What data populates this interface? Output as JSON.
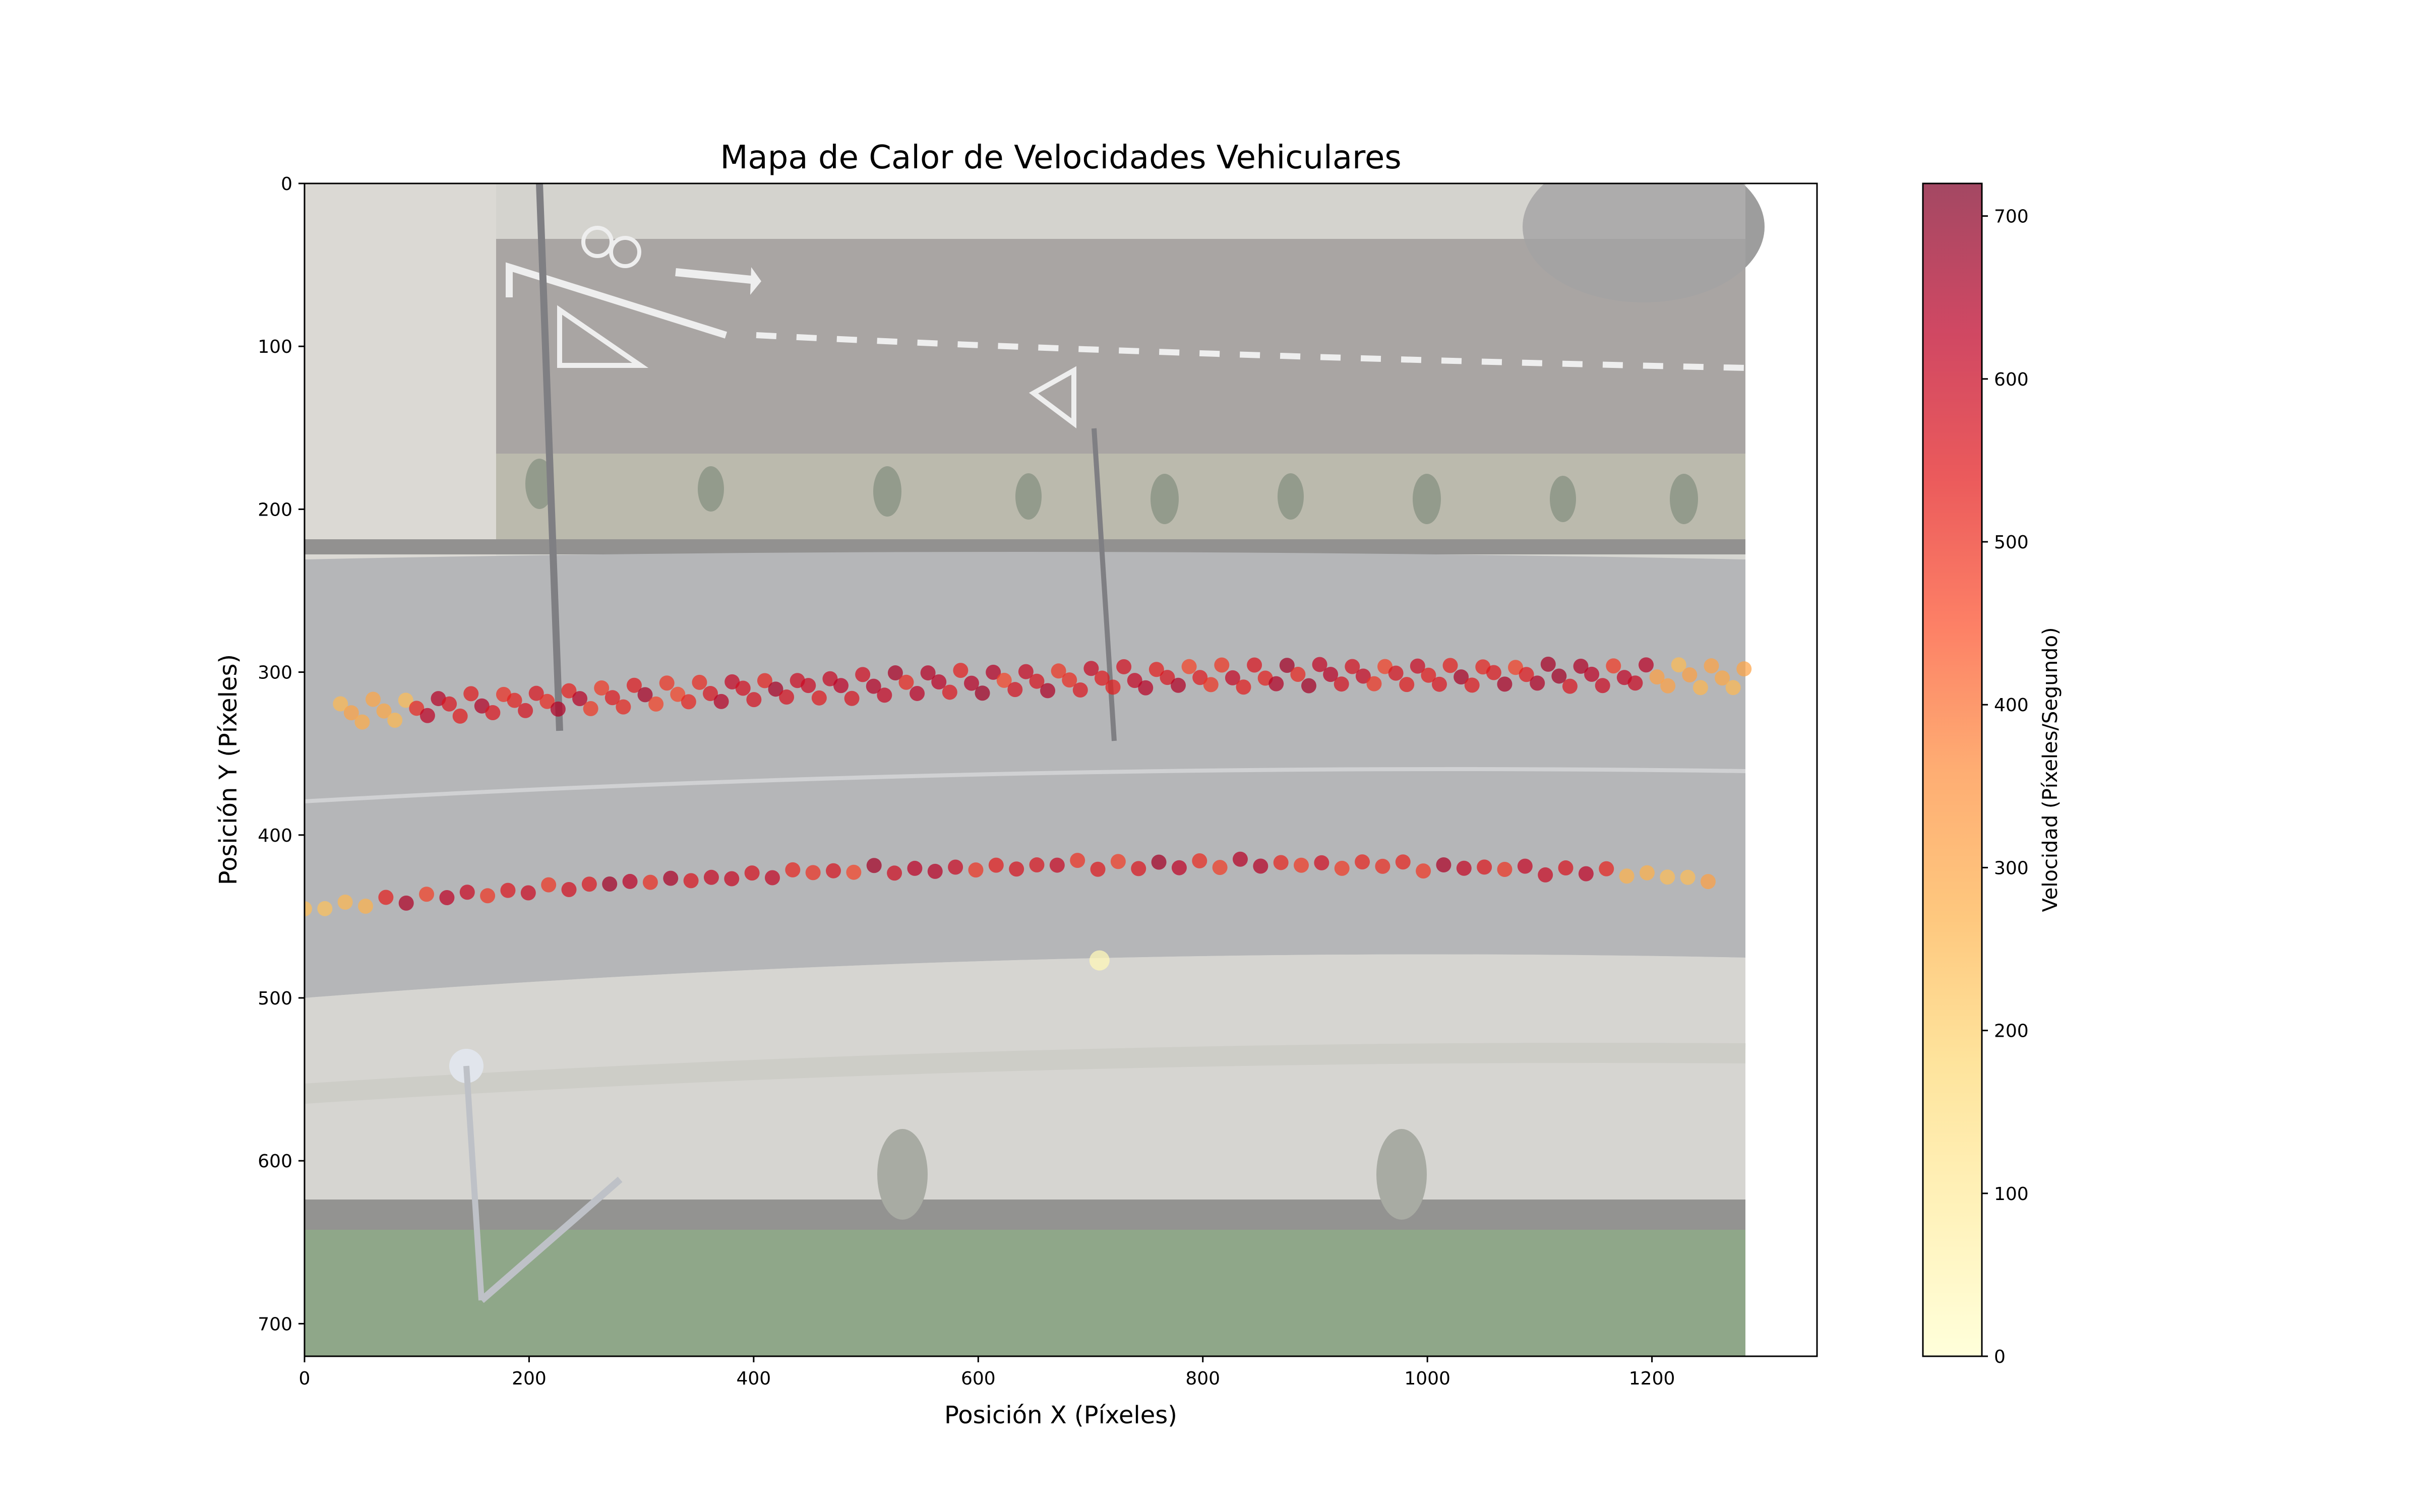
{
  "chart_data": {
    "type": "scatter",
    "title": "Mapa de Calor de Velocidades Vehiculares",
    "xlabel": "Posición X (Píxeles)",
    "ylabel": "Posición Y (Píxeles)",
    "xlim": [
      0,
      1347
    ],
    "ylim": [
      720,
      0
    ],
    "y_inverted": true,
    "xticks": [
      "0",
      "200",
      "400",
      "600",
      "800",
      "1000",
      "1200"
    ],
    "yticks": [
      "0",
      "100",
      "200",
      "300",
      "400",
      "500",
      "600",
      "700"
    ],
    "grid": false,
    "background_image": "aerial road view with bike lane, plants strip, two-lane road and sidewalk",
    "colorbar": {
      "label": "Velocidad (Píxeles/Segundo)",
      "min": 0,
      "max": 720,
      "ticks": [
        "0",
        "100",
        "200",
        "300",
        "400",
        "500",
        "600",
        "700"
      ],
      "colormap": "YlOrRd",
      "alpha": 0.7
    },
    "series": [
      {
        "lane": "upper",
        "x_start": 32,
        "x_end": 1282,
        "count": 130,
        "y_start": 325,
        "y_mid": 305,
        "y_end": 303,
        "spread": 18,
        "speed_profile": "low (~250) near x<90 and x>1180, 480-640 in middle, peaks ~680"
      },
      {
        "lane": "lower",
        "x_start": 0,
        "x_end": 1250,
        "count": 70,
        "y_start": 446,
        "y_mid": 419,
        "y_end": 427,
        "spread": 6,
        "speed_profile": "low (~280) near x<90 and x>1190, 520-620 in middle"
      },
      {
        "lane": "isolated",
        "points": [
          {
            "x": 708,
            "y": 477,
            "v": 40
          }
        ]
      }
    ]
  }
}
